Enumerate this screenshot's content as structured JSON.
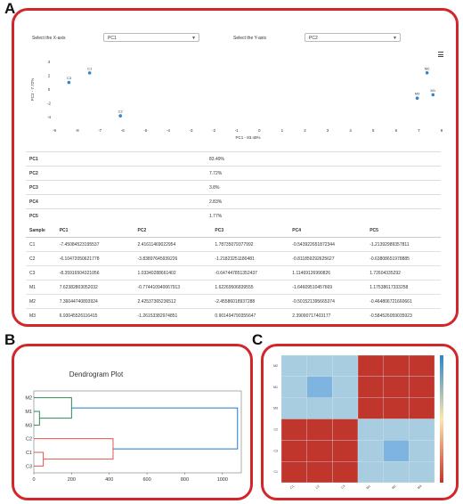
{
  "panels": {
    "a": "A",
    "b": "B",
    "c": "C"
  },
  "controls": {
    "x_label": "Select the X-axis",
    "x_value": "PC1",
    "y_label": "Select the Y-axis",
    "y_value": "PC2"
  },
  "menu_icon": "hamburger-menu-icon",
  "colors": {
    "border": "#d3262a",
    "point": "#3a83c4",
    "blue_cell": "#a9cde0",
    "red_cell": "#c0362c",
    "dendro_green": "#2e8b57",
    "dendro_red": "#e0564f",
    "dendro_blue": "#1f77d4"
  },
  "chart_data": [
    {
      "type": "scatter",
      "xlabel": "PC1 - 83.49%",
      "ylabel": "PC2 - 7.72%",
      "x_ticks": [
        "-9",
        "-8",
        "-7",
        "-6",
        "-5",
        "-4",
        "-3",
        "-2",
        "-1",
        "0",
        "1",
        "2",
        "3",
        "4",
        "5",
        "6",
        "7",
        "8"
      ],
      "y_ticks": [
        "4",
        "2",
        "0",
        "-2",
        "-4"
      ],
      "xlim": [
        -9,
        8
      ],
      "ylim": [
        -5,
        5
      ],
      "points": [
        {
          "label": "C1",
          "x": -7.45,
          "y": 2.42
        },
        {
          "label": "C2",
          "x": -6.1,
          "y": -3.84
        },
        {
          "label": "C3",
          "x": -8.36,
          "y": 1.03
        },
        {
          "label": "M1",
          "x": 7.62,
          "y": -0.77
        },
        {
          "label": "M2",
          "x": 7.36,
          "y": 2.43
        },
        {
          "label": "M3",
          "x": 6.93,
          "y": -1.26
        }
      ]
    },
    {
      "type": "table",
      "rows": [
        {
          "pc": "PC1",
          "value": "83.49%"
        },
        {
          "pc": "PC2",
          "value": "7.72%"
        },
        {
          "pc": "PC3",
          "value": "3.8%"
        },
        {
          "pc": "PC4",
          "value": "2.83%"
        },
        {
          "pc": "PC5",
          "value": "1.77%"
        }
      ]
    },
    {
      "type": "table",
      "headers": [
        "Sample",
        "PC1",
        "PC2",
        "PC3",
        "PC4",
        "PC5"
      ],
      "rows": [
        [
          "C1",
          "-7.45084523195537",
          "2.41611469022954",
          "1.78735079377992",
          "-0.543922651872344",
          "-1.21392989357811"
        ],
        [
          "C2",
          "-6.10472050621778",
          "-3.83897645939226",
          "-1.21823251180481",
          "-0.811859292625627",
          "-0.63808651978885"
        ],
        [
          "C3",
          "-8.35916504321056",
          "1.03340288661402",
          "-0.647447851352437",
          "1.11469126990826",
          "1.72604335292"
        ],
        [
          "M1",
          "7.62382803052032",
          "-0.774410940067913",
          "1.62269506839555",
          "-1.64609510457669",
          "1.17538617333258"
        ],
        [
          "M2",
          "7.36044740893924",
          "2.42537365236512",
          "-2.45586018937288",
          "-0.501521395665374",
          "-0.464806721660661"
        ],
        [
          "M3",
          "6.93045526116415",
          "-1.26153382974851",
          "0.901494790355647",
          "2.39090717403177",
          "-0.584526059035923"
        ]
      ]
    },
    {
      "type": "dendrogram",
      "title": "Dendrogram Plot",
      "leaves": [
        "M2",
        "M1",
        "M3",
        "C2",
        "C1",
        "C3"
      ],
      "x_ticks": [
        "0",
        "200",
        "400",
        "600",
        "800",
        "1000"
      ],
      "xlim": [
        0,
        1100
      ],
      "merges": [
        {
          "a": "M1",
          "b": "M3",
          "height": 30,
          "color": "green"
        },
        {
          "a": "M2",
          "b": "M1+M3",
          "height": 200,
          "color": "green"
        },
        {
          "a": "C1",
          "b": "C3",
          "height": 50,
          "color": "red"
        },
        {
          "a": "C2",
          "b": "C1+C3",
          "height": 420,
          "color": "red"
        },
        {
          "a": "M",
          "b": "C",
          "height": 1080,
          "color": "blue"
        }
      ]
    },
    {
      "type": "heatmap",
      "rows": [
        "M2",
        "M1",
        "M3",
        "C2",
        "C3",
        "C1"
      ],
      "cols": [
        "C1",
        "C2",
        "C3",
        "M1",
        "M2",
        "M3"
      ],
      "values": [
        [
          0.05,
          0.05,
          0.05,
          -1,
          -1,
          -1
        ],
        [
          0.05,
          0.3,
          0.05,
          -1,
          -1,
          -1
        ],
        [
          0.05,
          0.05,
          0.05,
          -1,
          -1,
          -1
        ],
        [
          -1,
          -1,
          -1,
          0.05,
          0.05,
          0.05
        ],
        [
          -1,
          -1,
          -1,
          0.05,
          0.3,
          0.05
        ],
        [
          -1,
          -1,
          -1,
          0.05,
          0.05,
          0.05
        ]
      ]
    }
  ]
}
